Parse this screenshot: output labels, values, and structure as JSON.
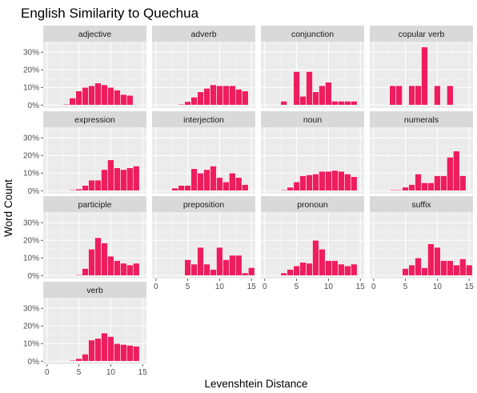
{
  "chart_data": {
    "type": "bar",
    "layout": "facet-grid",
    "title": "English Similarity to Quechua",
    "xlabel": "Levenshtein Distance",
    "ylabel": "Word Count",
    "xlim": [
      -0.6,
      15.6
    ],
    "ylim": [
      -0.017,
      0.36
    ],
    "x_ticks": [
      0,
      5,
      10,
      15
    ],
    "y_ticks": [
      0,
      0.1,
      0.2,
      0.3
    ],
    "y_tick_labels": [
      "0%",
      "10%",
      "20%",
      "30%"
    ],
    "bar_color": "#EE1D5E",
    "grid": true,
    "x": [
      0,
      1,
      2,
      3,
      4,
      5,
      6,
      7,
      8,
      9,
      10,
      11,
      12,
      13,
      14,
      15
    ],
    "panels": [
      {
        "name": "adjective",
        "values": [
          0,
          0,
          0,
          0.005,
          0.04,
          0.08,
          0.1,
          0.11,
          0.125,
          0.115,
          0.1,
          0.085,
          0.06,
          0.055,
          0,
          0
        ]
      },
      {
        "name": "adverb",
        "values": [
          0,
          0,
          0,
          0,
          0.005,
          0.02,
          0.045,
          0.075,
          0.095,
          0.115,
          0.11,
          0.11,
          0.11,
          0.09,
          0.08,
          0
        ]
      },
      {
        "name": "conjunction",
        "values": [
          0,
          0,
          0,
          0.022,
          0,
          0.19,
          0.05,
          0.19,
          0.075,
          0.11,
          0.13,
          0.022,
          0.022,
          0.022,
          0.022,
          0
        ]
      },
      {
        "name": "copular verb",
        "values": [
          0,
          0,
          0,
          0.11,
          0.11,
          0,
          0.11,
          0.11,
          0.33,
          0,
          0.11,
          0,
          0.11,
          0,
          0,
          0
        ]
      },
      {
        "name": "expression",
        "values": [
          0,
          0,
          0,
          0,
          0.005,
          0.01,
          0.03,
          0.06,
          0.06,
          0.12,
          0.175,
          0.13,
          0.12,
          0.13,
          0.14,
          0
        ]
      },
      {
        "name": "interjection",
        "values": [
          0,
          0,
          0,
          0.015,
          0.03,
          0.03,
          0.125,
          0.1,
          0.12,
          0.14,
          0.075,
          0.05,
          0.1,
          0.075,
          0.035,
          0
        ]
      },
      {
        "name": "noun",
        "values": [
          0,
          0,
          0,
          0.005,
          0.02,
          0.05,
          0.085,
          0.09,
          0.095,
          0.11,
          0.11,
          0.115,
          0.11,
          0.095,
          0.08,
          0
        ]
      },
      {
        "name": "numerals",
        "values": [
          0,
          0,
          0,
          0.005,
          0.005,
          0.02,
          0.035,
          0.095,
          0.045,
          0.045,
          0.085,
          0.085,
          0.19,
          0.225,
          0.085,
          0
        ]
      },
      {
        "name": "participle",
        "values": [
          0,
          0,
          0,
          0,
          0,
          0.005,
          0.04,
          0.15,
          0.215,
          0.185,
          0.11,
          0.085,
          0.07,
          0.06,
          0.07,
          0
        ]
      },
      {
        "name": "preposition",
        "values": [
          0,
          0,
          0,
          0,
          0,
          0.09,
          0.065,
          0.16,
          0.065,
          0.035,
          0.16,
          0.09,
          0.115,
          0.115,
          0.015,
          0.045
        ]
      },
      {
        "name": "pronoun",
        "values": [
          0,
          0,
          0,
          0.015,
          0.035,
          0.055,
          0.075,
          0.07,
          0.2,
          0.15,
          0.085,
          0.085,
          0.065,
          0.055,
          0.065,
          0
        ]
      },
      {
        "name": "suffix",
        "values": [
          0,
          0,
          0,
          0,
          0,
          0.04,
          0.06,
          0.1,
          0.045,
          0.18,
          0.16,
          0.085,
          0.085,
          0.06,
          0.095,
          0.06
        ]
      },
      {
        "name": "verb",
        "values": [
          0,
          0,
          0,
          0,
          0.005,
          0.015,
          0.04,
          0.12,
          0.13,
          0.16,
          0.14,
          0.1,
          0.095,
          0.09,
          0.085,
          0
        ]
      }
    ]
  }
}
